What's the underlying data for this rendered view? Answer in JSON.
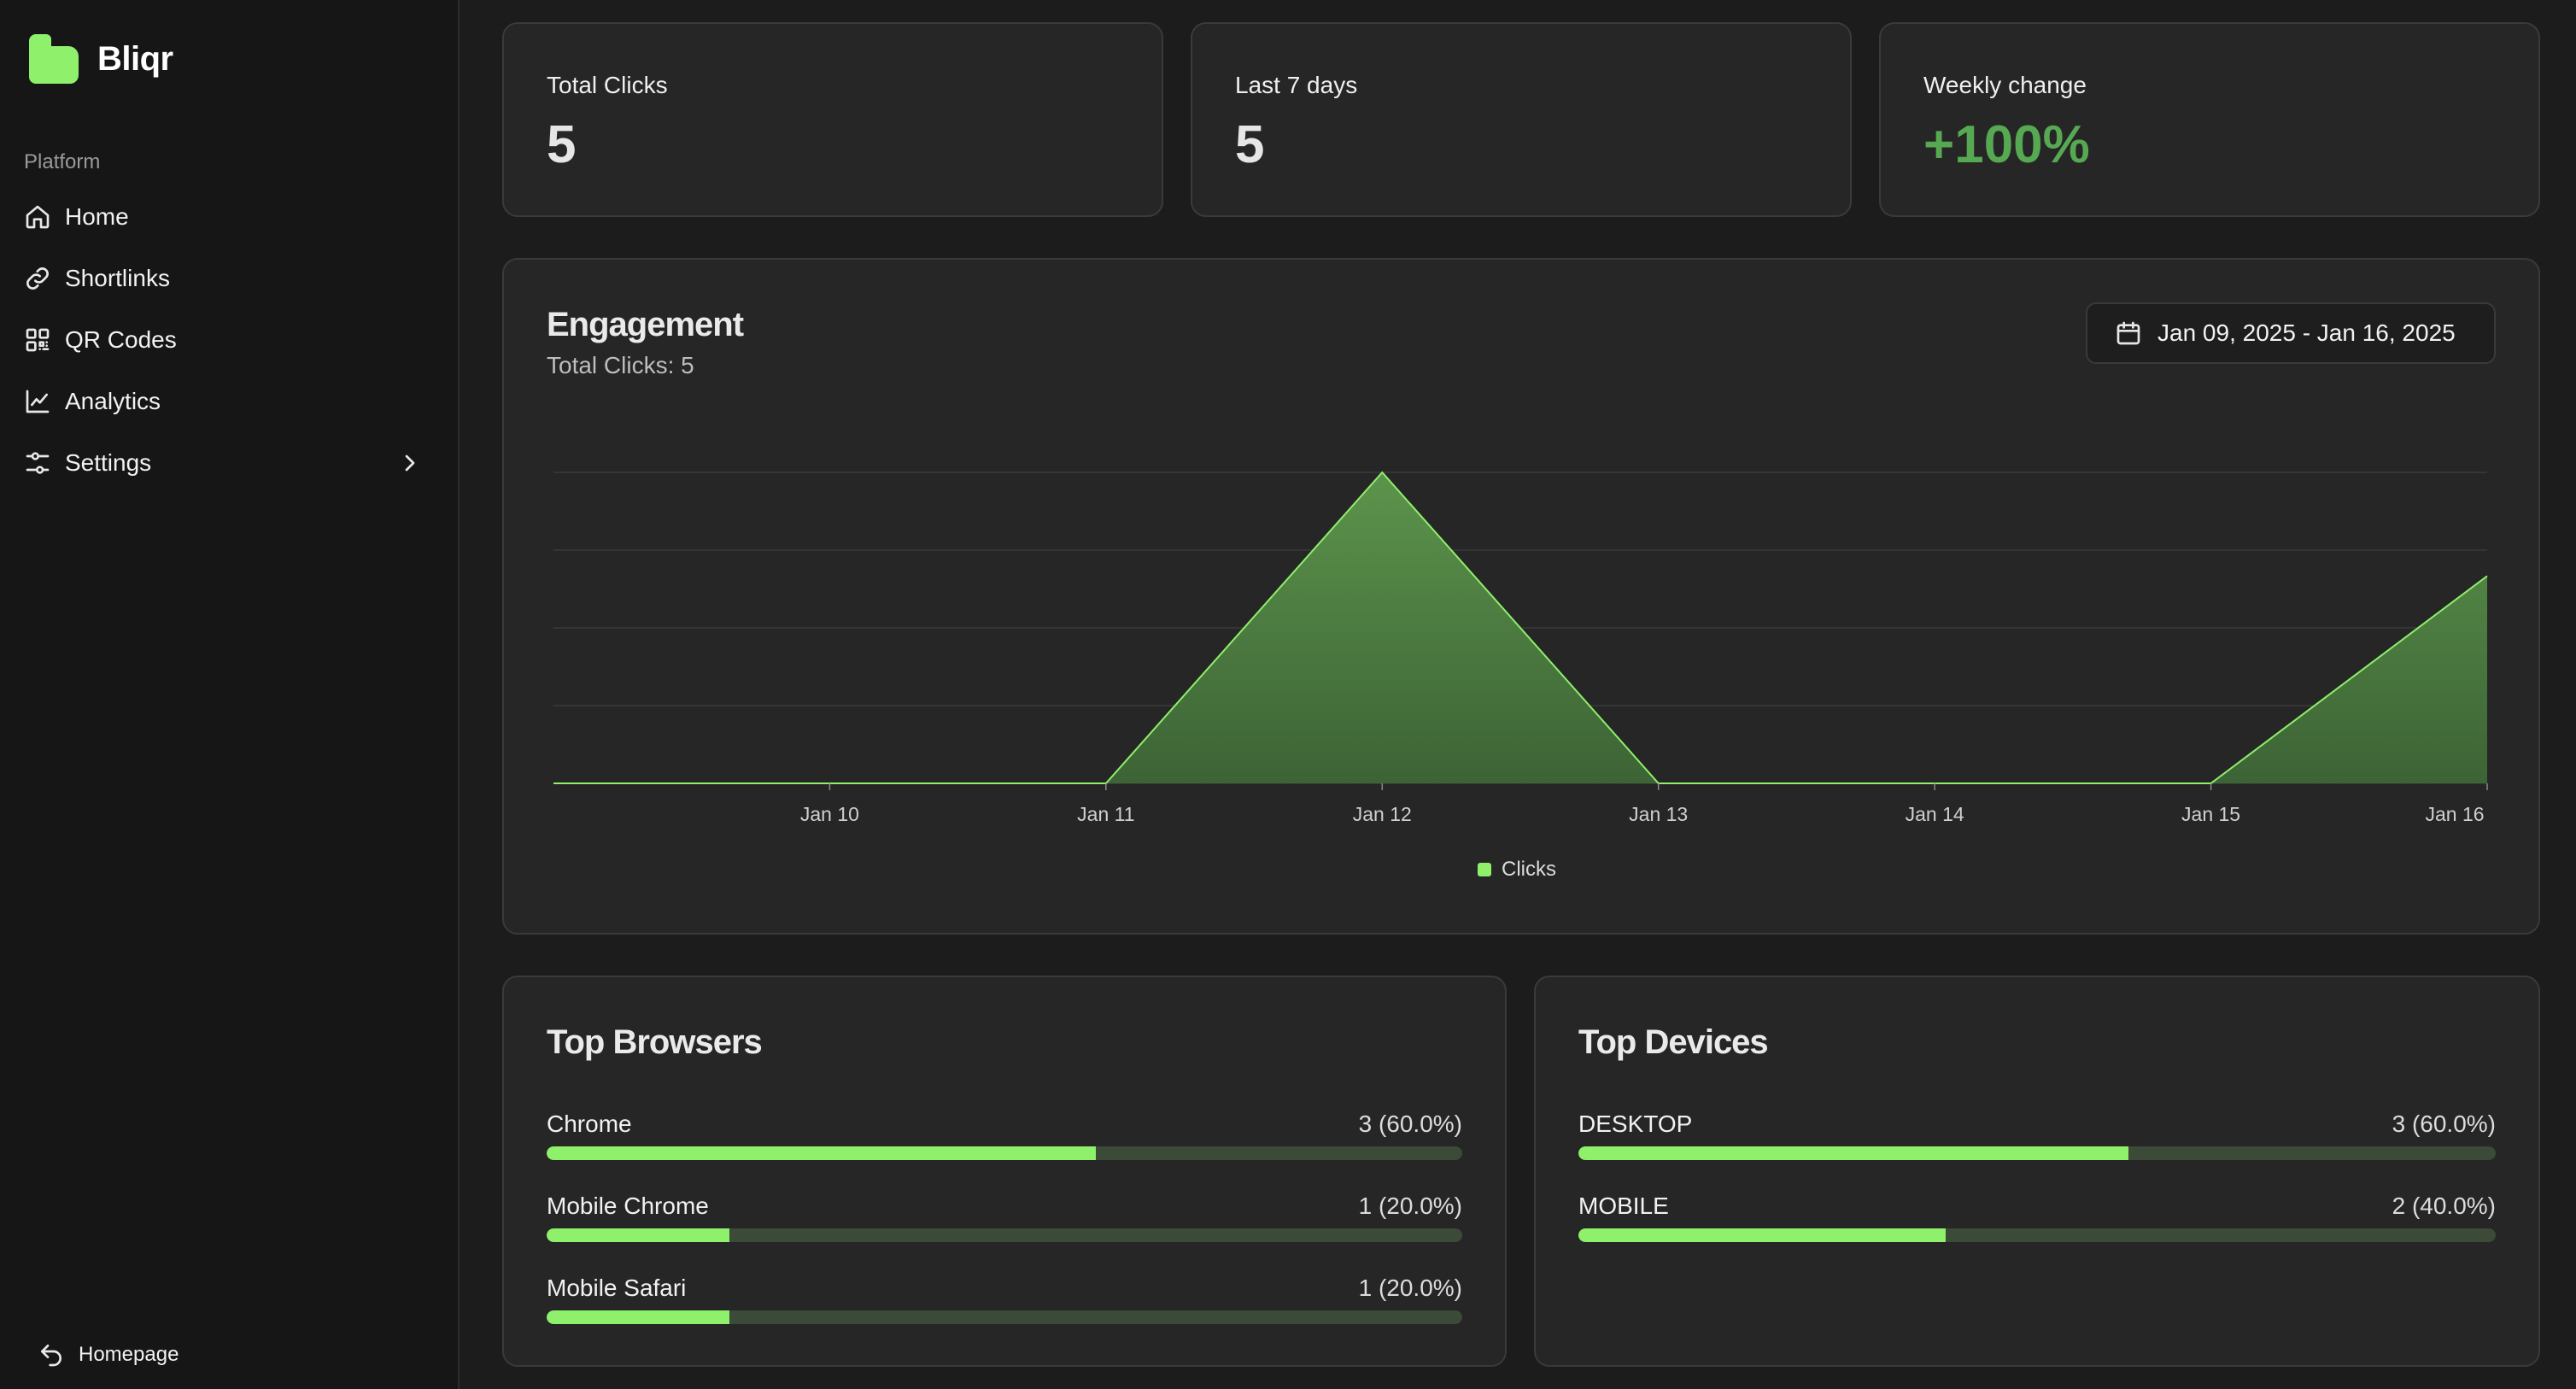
{
  "brand": {
    "name": "Bliqr",
    "color": "#8ef06b"
  },
  "sidebar": {
    "section_label": "Platform",
    "items": [
      {
        "label": "Home",
        "icon": "home-icon"
      },
      {
        "label": "Shortlinks",
        "icon": "link-icon"
      },
      {
        "label": "QR Codes",
        "icon": "qr-code-icon"
      },
      {
        "label": "Analytics",
        "icon": "chart-line-icon"
      },
      {
        "label": "Settings",
        "icon": "settings-icon"
      }
    ],
    "footer_link": "Homepage"
  },
  "stats": [
    {
      "label": "Total Clicks",
      "value": "5"
    },
    {
      "label": "Last 7 days",
      "value": "5"
    },
    {
      "label": "Weekly change",
      "value": "+100%",
      "color": "#57a853"
    }
  ],
  "engagement": {
    "title": "Engagement",
    "subtitle": "Total Clicks: 5",
    "date_range": "Jan 09, 2025 - Jan 16, 2025"
  },
  "chart_data": {
    "type": "area",
    "title": "Engagement",
    "x": [
      "Jan 09",
      "Jan 10",
      "Jan 11",
      "Jan 12",
      "Jan 13",
      "Jan 14",
      "Jan 15",
      "Jan 16"
    ],
    "x_tick_labels": [
      "Jan 10",
      "Jan 11",
      "Jan 12",
      "Jan 13",
      "Jan 14",
      "Jan 15",
      "Jan 16"
    ],
    "series": [
      {
        "name": "Clicks",
        "values": [
          0,
          0,
          0,
          3,
          0,
          0,
          0,
          2
        ],
        "color": "#8ef06b"
      }
    ],
    "ylim": [
      0,
      3
    ],
    "grid": true,
    "legend": "bottom-center"
  },
  "top_browsers": {
    "title": "Top Browsers",
    "items": [
      {
        "name": "Chrome",
        "stat": "3 (60.0%)",
        "fraction": 0.6
      },
      {
        "name": "Mobile Chrome",
        "stat": "1 (20.0%)",
        "fraction": 0.2
      },
      {
        "name": "Mobile Safari",
        "stat": "1 (20.0%)",
        "fraction": 0.2
      }
    ]
  },
  "top_devices": {
    "title": "Top Devices",
    "items": [
      {
        "name": "DESKTOP",
        "stat": "3 (60.0%)",
        "fraction": 0.6
      },
      {
        "name": "MOBILE",
        "stat": "2 (40.0%)",
        "fraction": 0.4
      }
    ]
  }
}
